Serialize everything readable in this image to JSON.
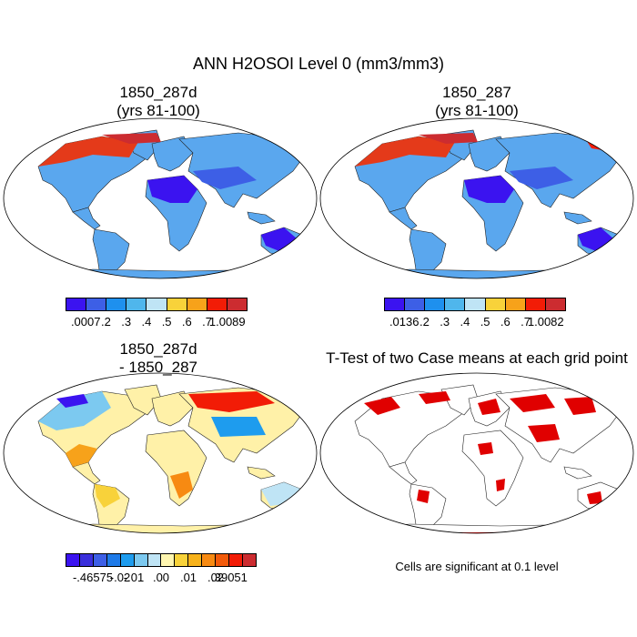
{
  "title": "ANN H2OSOI Level 0 (mm3/mm3)",
  "panels": [
    {
      "id": "p1",
      "title_line1": "1850_287d",
      "title_line2": "(yrs 81-100)"
    },
    {
      "id": "p2",
      "title_line1": "1850_287",
      "title_line2": "(yrs 81-100)"
    },
    {
      "id": "p3",
      "title_line1": "1850_287d",
      "title_line2": "- 1850_287"
    },
    {
      "id": "p4",
      "title_line1": "T-Test of two Case means at each grid point",
      "title_line2": ""
    }
  ],
  "colorbars": [
    {
      "id": "cb1",
      "colors": [
        "#3b13f0",
        "#3d5fe6",
        "#1e90ee",
        "#4fb6ec",
        "#bfe4f5",
        "#f8d23a",
        "#f7a21a",
        "#f21c06",
        "#cc2c30"
      ],
      "labels": [
        ".0007",
        ".2",
        ".3",
        ".4",
        ".5",
        ".6",
        ".7",
        "1.0089"
      ]
    },
    {
      "id": "cb2",
      "colors": [
        "#3b13f0",
        "#3d5fe6",
        "#1e90ee",
        "#4fb6ec",
        "#bfe4f5",
        "#f8d23a",
        "#f7a21a",
        "#f21c06",
        "#cc2c30"
      ],
      "labels": [
        ".0136",
        ".2",
        ".3",
        ".4",
        ".5",
        ".6",
        ".7",
        "1.0082"
      ]
    },
    {
      "id": "cb3",
      "colors": [
        "#3b13f0",
        "#3a2fdc",
        "#3d5fe6",
        "#1e7ae8",
        "#1e9cee",
        "#7cc9f0",
        "#bfe4f5",
        "#fff6b0",
        "#f8d23a",
        "#f7b21a",
        "#f78a12",
        "#f25a0a",
        "#f21c06",
        "#cc2c30"
      ],
      "labels": [
        "-.46575",
        "-.02",
        "-.01",
        ".00",
        ".01",
        ".02",
        ".39051"
      ]
    }
  ],
  "note": "Cells are significant at 0.1 level"
}
